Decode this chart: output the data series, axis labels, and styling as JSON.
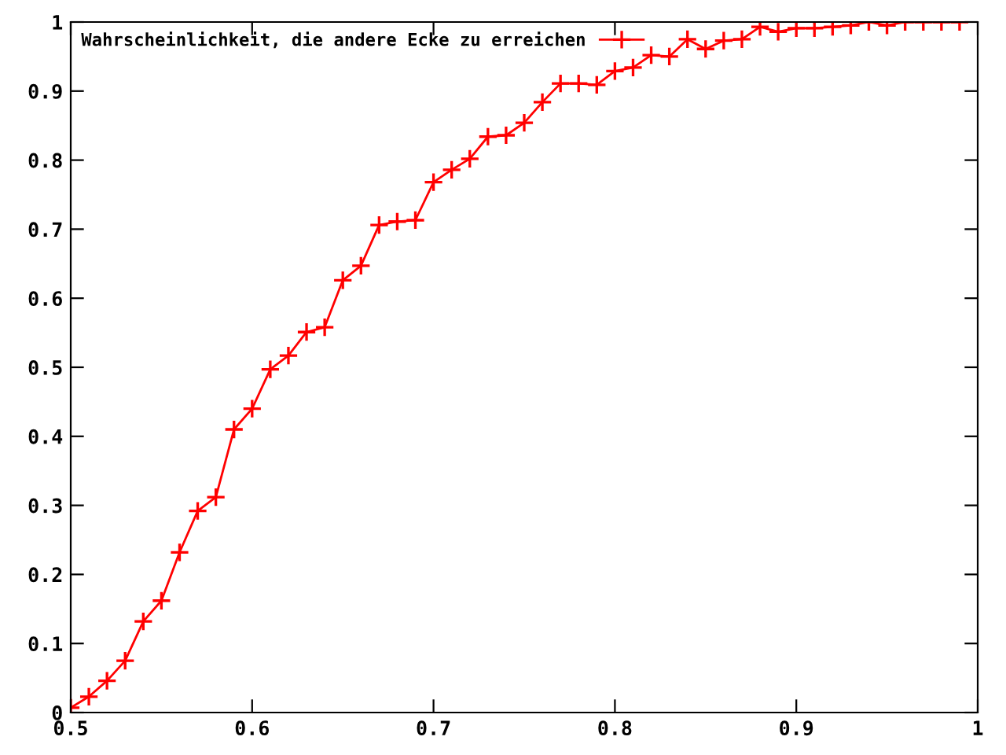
{
  "chart_data": {
    "type": "line",
    "x": [
      0.5,
      0.51,
      0.52,
      0.53,
      0.54,
      0.55,
      0.56,
      0.57,
      0.58,
      0.59,
      0.6,
      0.61,
      0.62,
      0.63,
      0.64,
      0.65,
      0.66,
      0.67,
      0.68,
      0.69,
      0.7,
      0.71,
      0.72,
      0.73,
      0.74,
      0.75,
      0.76,
      0.77,
      0.78,
      0.79,
      0.8,
      0.81,
      0.82,
      0.83,
      0.84,
      0.85,
      0.86,
      0.87,
      0.88,
      0.89,
      0.9,
      0.91,
      0.92,
      0.93,
      0.94,
      0.95,
      0.96,
      0.97,
      0.98,
      0.99
    ],
    "series": [
      {
        "name": "Wahrscheinlichkeit, die andere Ecke zu erreichen",
        "color": "#ff0000",
        "values": [
          0.007,
          0.023,
          0.046,
          0.075,
          0.132,
          0.162,
          0.232,
          0.292,
          0.312,
          0.41,
          0.44,
          0.497,
          0.517,
          0.551,
          0.558,
          0.626,
          0.647,
          0.706,
          0.711,
          0.713,
          0.768,
          0.786,
          0.802,
          0.834,
          0.836,
          0.854,
          0.884,
          0.911,
          0.911,
          0.909,
          0.929,
          0.934,
          0.952,
          0.95,
          0.975,
          0.961,
          0.973,
          0.975,
          0.993,
          0.986,
          0.991,
          0.991,
          0.993,
          0.995,
          1.0,
          0.995,
          1.0,
          1.0,
          1.0,
          1.0
        ]
      }
    ],
    "xlim": [
      0.5,
      1
    ],
    "xticks": [
      0.5,
      0.6,
      0.7,
      0.8,
      0.9,
      {
        "value": 1,
        "label": "1"
      }
    ],
    "ylim": [
      0,
      1
    ],
    "yticks": [
      {
        "value": 0,
        "label": "0"
      },
      0.1,
      0.2,
      0.3,
      0.4,
      0.5,
      0.6,
      0.7,
      0.8,
      0.9,
      {
        "value": 1,
        "label": "1"
      }
    ],
    "marker": "cross",
    "line_style": "solid",
    "grid": false,
    "legend": "top left"
  }
}
